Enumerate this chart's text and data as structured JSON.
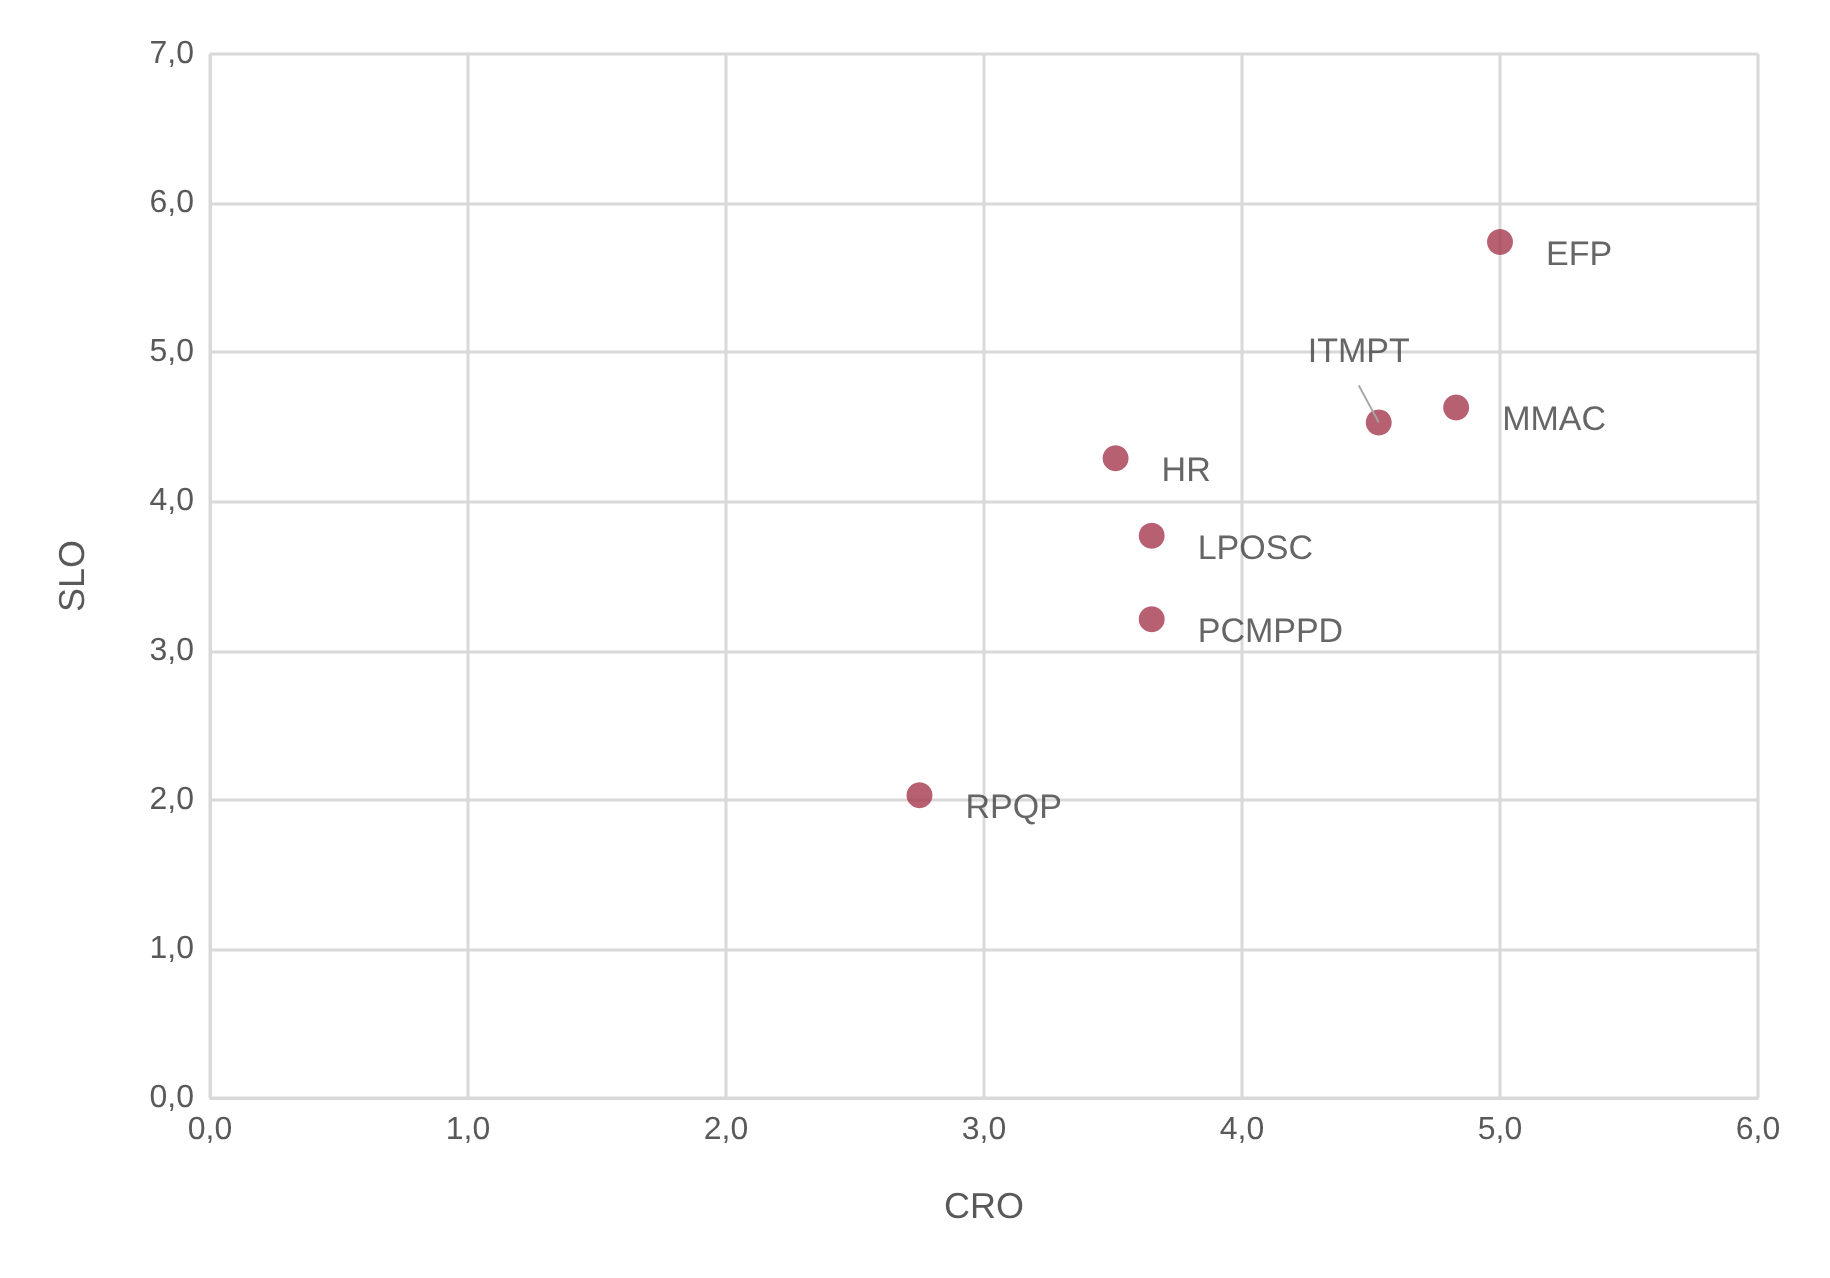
{
  "chart_data": {
    "type": "scatter",
    "xlabel": "CRO",
    "ylabel": "SLO",
    "x": [
      5.0,
      4.83,
      4.53,
      3.51,
      3.65,
      3.65,
      2.75
    ],
    "series": [
      {
        "color": "#a5384e",
        "values": [
          5.74,
          4.63,
          4.53,
          4.29,
          3.77,
          3.21,
          2.03
        ]
      }
    ],
    "annotations": [
      {
        "text": "EFP",
        "x": 5.0,
        "y": 5.74
      },
      {
        "text": "MMAC",
        "x": 4.83,
        "y": 4.63
      },
      {
        "text": "ITMPT",
        "x": 4.53,
        "y": 4.53
      },
      {
        "text": "HR",
        "x": 3.51,
        "y": 4.29
      },
      {
        "text": "LPOSC",
        "x": 3.65,
        "y": 3.77
      },
      {
        "text": "PCMPPD",
        "x": 3.65,
        "y": 3.21
      },
      {
        "text": "RPQP",
        "x": 2.75,
        "y": 2.03
      }
    ],
    "xlim": [
      0,
      6
    ],
    "xticks": [
      {
        "value": 0,
        "label": "0,0"
      },
      {
        "value": 1,
        "label": "1,0"
      },
      {
        "value": 2,
        "label": "2,0"
      },
      {
        "value": 3,
        "label": "3,0"
      },
      {
        "value": 4,
        "label": "4,0"
      },
      {
        "value": 5,
        "label": "5,0"
      },
      {
        "value": 6,
        "label": "6,0"
      }
    ],
    "ylim": [
      0,
      7
    ],
    "yticks": [
      {
        "value": 0,
        "label": "0,0"
      },
      {
        "value": 1,
        "label": "1,0"
      },
      {
        "value": 2,
        "label": "2,0"
      },
      {
        "value": 3,
        "label": "3,0"
      },
      {
        "value": 4,
        "label": "4,0"
      },
      {
        "value": 5,
        "label": "5,0"
      },
      {
        "value": 6,
        "label": "6,0"
      },
      {
        "value": 7,
        "label": "7,0"
      }
    ],
    "grid": true,
    "marker": "circle"
  }
}
